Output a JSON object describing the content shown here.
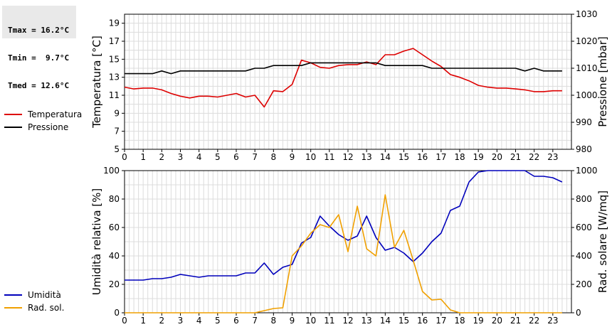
{
  "stats": {
    "tmax": "Tmax = 16.2°C",
    "tmin": "Tmin =  9.7°C",
    "tmed": "Tmed = 12.6°C"
  },
  "colors": {
    "temperature": "#dd0000",
    "pressure": "#000000",
    "humidity": "#0000bb",
    "radiation": "#f0a000"
  },
  "chart_data": [
    {
      "type": "line",
      "grid": true,
      "legend": "left",
      "xlim": [
        0,
        24
      ],
      "x_ticks": [
        "0",
        "1",
        "2",
        "3",
        "4",
        "5",
        "6",
        "7",
        "8",
        "9",
        "10",
        "11",
        "12",
        "13",
        "14",
        "15",
        "16",
        "17",
        "18",
        "19",
        "20",
        "21",
        "22",
        "23"
      ],
      "ylabel": "Temperatura [°C]",
      "ylim": [
        5,
        20
      ],
      "y_ticks": [
        "5",
        "7",
        "9",
        "11",
        "13",
        "15",
        "17",
        "19"
      ],
      "y2label": "Pressione [mbar]",
      "y2lim": [
        980,
        1030
      ],
      "y2_ticks": [
        "980",
        "990",
        "1000",
        "1010",
        "1020",
        "1030"
      ],
      "series": [
        {
          "name": "Temperatura",
          "axis": "left",
          "x": [
            0,
            0.5,
            1,
            1.5,
            2,
            2.5,
            3,
            3.5,
            4,
            4.5,
            5,
            5.5,
            6,
            6.5,
            7,
            7.5,
            8,
            8.5,
            9,
            9.5,
            10,
            10.5,
            11,
            11.5,
            12,
            12.5,
            13,
            13.5,
            14,
            14.5,
            15,
            15.5,
            16,
            16.5,
            17,
            17.5,
            18,
            18.5,
            19,
            19.5,
            20,
            20.5,
            21,
            21.5,
            22,
            22.5,
            23,
            23.5
          ],
          "values": [
            11.9,
            11.7,
            11.8,
            11.8,
            11.6,
            11.2,
            10.9,
            10.7,
            10.9,
            10.9,
            10.8,
            11.0,
            11.2,
            10.8,
            11.0,
            9.7,
            11.5,
            11.4,
            12.2,
            14.9,
            14.6,
            14.1,
            14.0,
            14.3,
            14.4,
            14.4,
            14.7,
            14.4,
            15.5,
            15.5,
            15.9,
            16.2,
            15.5,
            14.8,
            14.2,
            13.3,
            13.0,
            12.6,
            12.1,
            11.9,
            11.8,
            11.8,
            11.7,
            11.6,
            11.4,
            11.4,
            11.5,
            11.5
          ]
        },
        {
          "name": "Pressione",
          "axis": "right",
          "x": [
            0,
            0.5,
            1,
            1.5,
            2,
            2.5,
            3,
            3.5,
            4,
            4.5,
            5,
            5.5,
            6,
            6.5,
            7,
            7.5,
            8,
            8.5,
            9,
            9.5,
            10,
            10.5,
            11,
            11.5,
            12,
            12.5,
            13,
            13.5,
            14,
            14.5,
            15,
            15.5,
            16,
            16.5,
            17,
            17.5,
            18,
            18.5,
            19,
            19.5,
            20,
            20.5,
            21,
            21.5,
            22,
            22.5,
            23,
            23.5
          ],
          "values": [
            1008,
            1008,
            1008,
            1008,
            1009,
            1008,
            1009,
            1009,
            1009,
            1009,
            1009,
            1009,
            1009,
            1009,
            1010,
            1010,
            1011,
            1011,
            1011,
            1011,
            1012,
            1012,
            1012,
            1012,
            1012,
            1012,
            1012,
            1012,
            1011,
            1011,
            1011,
            1011,
            1011,
            1010,
            1010,
            1010,
            1010,
            1010,
            1010,
            1010,
            1010,
            1010,
            1010,
            1009,
            1010,
            1009,
            1009,
            1009
          ]
        }
      ]
    },
    {
      "type": "line",
      "grid": true,
      "legend": "left",
      "xlim": [
        0,
        24
      ],
      "x_ticks": [
        "0",
        "1",
        "2",
        "3",
        "4",
        "5",
        "6",
        "7",
        "8",
        "9",
        "10",
        "11",
        "12",
        "13",
        "14",
        "15",
        "16",
        "17",
        "18",
        "19",
        "20",
        "21",
        "22",
        "23"
      ],
      "ylabel": "Umidità relativa [%]",
      "ylim": [
        0,
        100
      ],
      "y_ticks": [
        "0",
        "20",
        "40",
        "60",
        "80",
        "100"
      ],
      "y2label": "Rad. solare [W/mq]",
      "y2lim": [
        0,
        1000
      ],
      "y2_ticks": [
        "0",
        "200",
        "400",
        "600",
        "800",
        "1000"
      ],
      "series": [
        {
          "name": "Umidità",
          "axis": "left",
          "x": [
            0,
            0.5,
            1,
            1.5,
            2,
            2.5,
            3,
            3.5,
            4,
            4.5,
            5,
            5.5,
            6,
            6.5,
            7,
            7.5,
            8,
            8.5,
            9,
            9.5,
            10,
            10.5,
            11,
            11.5,
            12,
            12.5,
            13,
            13.5,
            14,
            14.5,
            15,
            15.5,
            16,
            16.5,
            17,
            17.5,
            18,
            18.5,
            19,
            19.5,
            20,
            20.5,
            21,
            21.5,
            22,
            22.5,
            23,
            23.5
          ],
          "values": [
            23,
            23,
            23,
            24,
            24,
            25,
            27,
            26,
            25,
            26,
            26,
            26,
            26,
            28,
            28,
            35,
            27,
            32,
            34,
            49,
            53,
            68,
            61,
            55,
            51,
            54,
            68,
            53,
            44,
            46,
            42,
            36,
            42,
            50,
            56,
            72,
            75,
            92,
            99,
            100,
            100,
            100,
            100,
            100,
            96,
            96,
            95,
            92
          ]
        },
        {
          "name": "Rad. sol.",
          "axis": "right",
          "x": [
            0,
            0.5,
            1,
            1.5,
            2,
            2.5,
            3,
            3.5,
            4,
            4.5,
            5,
            5.5,
            6,
            6.5,
            7,
            7.5,
            8,
            8.5,
            9,
            9.5,
            10,
            10.5,
            11,
            11.5,
            12,
            12.5,
            13,
            13.5,
            14,
            14.5,
            15,
            15.5,
            16,
            16.5,
            17,
            17.5,
            18,
            18.5,
            19,
            19.5,
            20,
            20.5,
            21,
            21.5,
            22,
            22.5,
            23,
            23.5
          ],
          "values": [
            0,
            0,
            0,
            0,
            0,
            0,
            0,
            0,
            0,
            0,
            0,
            0,
            0,
            0,
            0,
            15,
            30,
            35,
            400,
            470,
            560,
            620,
            600,
            690,
            430,
            750,
            450,
            400,
            830,
            460,
            580,
            370,
            150,
            90,
            95,
            20,
            0,
            0,
            0,
            0,
            0,
            0,
            0,
            0,
            0,
            0,
            0,
            0
          ]
        }
      ]
    }
  ]
}
